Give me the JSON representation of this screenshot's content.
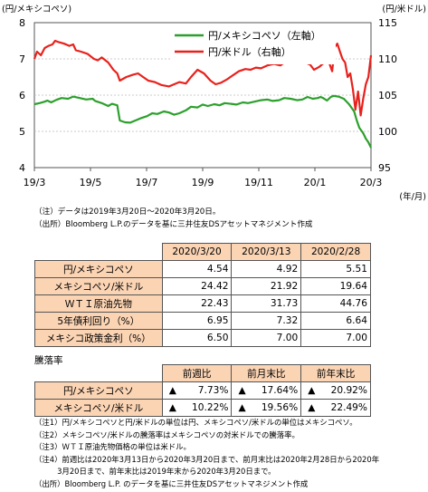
{
  "chart_data": {
    "type": "line",
    "left_axis_title": "(円/メキシコペソ)",
    "right_axis_title": "(円/米ドル)",
    "x_unit": "(年/月)",
    "x_ticks": [
      "19/3",
      "19/5",
      "19/7",
      "19/9",
      "19/11",
      "20/1",
      "20/3"
    ],
    "y_left": {
      "min": 4,
      "max": 8,
      "ticks": [
        4,
        5,
        6,
        7,
        8
      ]
    },
    "y_right": {
      "min": 95,
      "max": 115,
      "ticks": [
        95,
        100,
        105,
        110,
        115
      ]
    },
    "legend_position": "top-right",
    "series": [
      {
        "name": "円/メキシコペソ（左軸）",
        "axis": "left",
        "color": "#2ca02c",
        "x": [
          0,
          4,
          8,
          10,
          13,
          17,
          21,
          26,
          30,
          35,
          40,
          45,
          47,
          52,
          57,
          60,
          64,
          66,
          70,
          74,
          78,
          82,
          87,
          91,
          95,
          100,
          104,
          108,
          112,
          117,
          121,
          126,
          130,
          134,
          139,
          143,
          147,
          152,
          156,
          161,
          165,
          170,
          175,
          180,
          184,
          189,
          193,
          198,
          203,
          207,
          211,
          215,
          219,
          221,
          223,
          226,
          229,
          231,
          235,
          239,
          243,
          247,
          249,
          251,
          254,
          256,
          258,
          260
        ],
        "values": [
          5.75,
          5.78,
          5.82,
          5.85,
          5.8,
          5.87,
          5.92,
          5.9,
          5.96,
          5.92,
          5.88,
          5.9,
          5.84,
          5.78,
          5.7,
          5.76,
          5.72,
          5.3,
          5.25,
          5.24,
          5.3,
          5.36,
          5.42,
          5.5,
          5.48,
          5.55,
          5.52,
          5.46,
          5.5,
          5.58,
          5.68,
          5.66,
          5.74,
          5.7,
          5.75,
          5.72,
          5.78,
          5.76,
          5.74,
          5.8,
          5.78,
          5.82,
          5.86,
          5.88,
          5.84,
          5.86,
          5.92,
          5.9,
          5.86,
          5.88,
          5.95,
          5.9,
          5.92,
          5.95,
          5.92,
          5.85,
          5.95,
          5.98,
          5.96,
          5.9,
          5.75,
          5.55,
          5.3,
          5.1,
          4.95,
          4.8,
          4.7,
          4.55
        ]
      },
      {
        "name": "円/米ドル（右軸）",
        "axis": "right",
        "color": "#e8211c",
        "x": [
          0,
          2,
          5,
          8,
          11,
          14,
          16,
          19,
          23,
          27,
          30,
          32,
          36,
          41,
          46,
          49,
          52,
          57,
          61,
          64,
          66,
          71,
          76,
          80,
          84,
          88,
          93,
          98,
          104,
          108,
          112,
          117,
          121,
          126,
          131,
          136,
          140,
          144,
          149,
          153,
          158,
          163,
          167,
          171,
          175,
          180,
          185,
          190,
          194,
          199,
          204,
          209,
          213,
          216,
          220,
          224,
          227,
          230,
          232,
          234,
          236,
          238,
          240,
          242,
          244,
          246,
          248,
          250,
          252,
          254,
          256,
          258,
          260
        ],
        "values": [
          110,
          111,
          110.5,
          111.5,
          111.8,
          112,
          112.5,
          112.3,
          112.1,
          111.8,
          112,
          111.2,
          111,
          110.7,
          110,
          109.8,
          110.2,
          109.5,
          108.5,
          108,
          107,
          107.5,
          107.8,
          108,
          107.5,
          107,
          106.8,
          106.4,
          106.2,
          106.5,
          106.8,
          106.6,
          107.5,
          108.5,
          108,
          107,
          106.5,
          106.7,
          107.2,
          107.7,
          108.3,
          108.6,
          108.5,
          108.8,
          108.7,
          109.1,
          109.3,
          109.1,
          109.6,
          109.9,
          109.6,
          109.5,
          109.2,
          108.5,
          108.9,
          109.5,
          109.8,
          108.3,
          111.6,
          112.1,
          111,
          110,
          109.5,
          107.5,
          108,
          105.8,
          103,
          105.5,
          102.2,
          104.5,
          106.5,
          107.5,
          110.5
        ]
      }
    ]
  },
  "notes": {
    "chart_note": "（注）データは2019年3月20日～2020年3月20日。",
    "chart_source": "（出所）Bloomberg L.P.のデータを基に三井住友DSアセットマネジメント作成"
  },
  "table1": {
    "headers": [
      "2020/3/20",
      "2020/3/13",
      "2020/2/28"
    ],
    "rows": [
      {
        "label": "円/メキシコペソ",
        "values": [
          "4.54",
          "4.92",
          "5.51"
        ]
      },
      {
        "label": "メキシコペソ/米ドル",
        "values": [
          "24.42",
          "21.92",
          "19.64"
        ]
      },
      {
        "label": "ＷＴＩ原油先物",
        "values": [
          "22.43",
          "31.73",
          "44.76"
        ]
      },
      {
        "label": "5年債利回り（%）",
        "values": [
          "6.95",
          "7.32",
          "6.64"
        ]
      },
      {
        "label": "メキシコ政策金利（%）",
        "values": [
          "6.50",
          "7.00",
          "7.00"
        ]
      }
    ]
  },
  "falls_title": "騰落率",
  "table2": {
    "headers": [
      "前週比",
      "前月末比",
      "前年末比"
    ],
    "rows": [
      {
        "label": "円/メキシコペソ",
        "values": [
          {
            "arrow": "▲",
            "value": "7.73%"
          },
          {
            "arrow": "▲",
            "value": "17.64%"
          },
          {
            "arrow": "▲",
            "value": "20.92%"
          }
        ]
      },
      {
        "label": "メキシコペソ/米ドル",
        "values": [
          {
            "arrow": "▲",
            "value": "10.22%"
          },
          {
            "arrow": "▲",
            "value": "19.56%"
          },
          {
            "arrow": "▲",
            "value": "22.49%"
          }
        ]
      }
    ]
  },
  "footnotes": [
    "（注1）円/メキシコペソと円/米ドルの単位は円、メキシコペソ/米ドルの単位はメキシコペソ。",
    "（注2）メキシコペソ/米ドルの騰落率はメキシコペソの対米ドルでの騰落率。",
    "（注3）ＷＴＩ原油先物価格の単位は米ドル。",
    "（注4）前週比は2020年3月13日から2020年3月20日まで、前月末比は2020年2月28日から2020年",
    "　　　3月20日まで、前年末比は2019年末から2020年3月20日まで。",
    "（出所）Bloomberg L.P. のデータを基に三井住友DSアセットマネジメント作成"
  ]
}
